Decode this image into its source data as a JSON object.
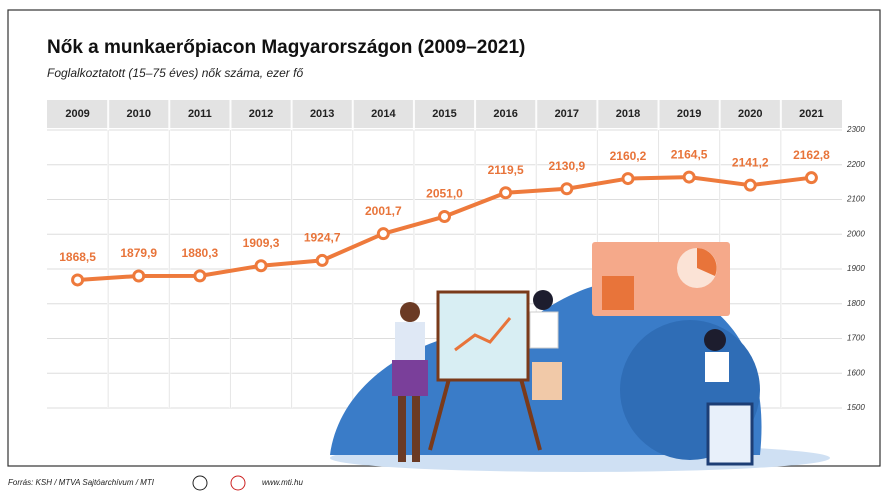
{
  "chart_data": {
    "type": "line",
    "title": "Nők a munkaerőpiacon Magyarországon (2009–2021)",
    "subtitle": "Foglalkoztatott (15–75 éves) nők száma, ezer fő",
    "categories": [
      "2009",
      "2010",
      "2011",
      "2012",
      "2013",
      "2014",
      "2015",
      "2016",
      "2017",
      "2018",
      "2019",
      "2020",
      "2021"
    ],
    "values": [
      1868.5,
      1879.9,
      1880.3,
      1909.3,
      1924.7,
      2001.7,
      2051.0,
      2119.5,
      2130.9,
      2160.2,
      2164.5,
      2141.2,
      2162.8
    ],
    "value_labels": [
      "1868,5",
      "1879,9",
      "1880,3",
      "1909,3",
      "1924,7",
      "2001,7",
      "2051,0",
      "2119,5",
      "2130,9",
      "2160,2",
      "2164,5",
      "2141,2",
      "2162,8"
    ],
    "color": "#ee7a3c",
    "ylim": [
      1500,
      2300
    ],
    "yticks": [
      1500,
      1600,
      1700,
      1800,
      1900,
      2000,
      2100,
      2200,
      2300
    ],
    "grid": true,
    "source": "Forrás: KSH / MTVA Sajtóarchívum / MTI",
    "website": "www.mti.hu"
  }
}
